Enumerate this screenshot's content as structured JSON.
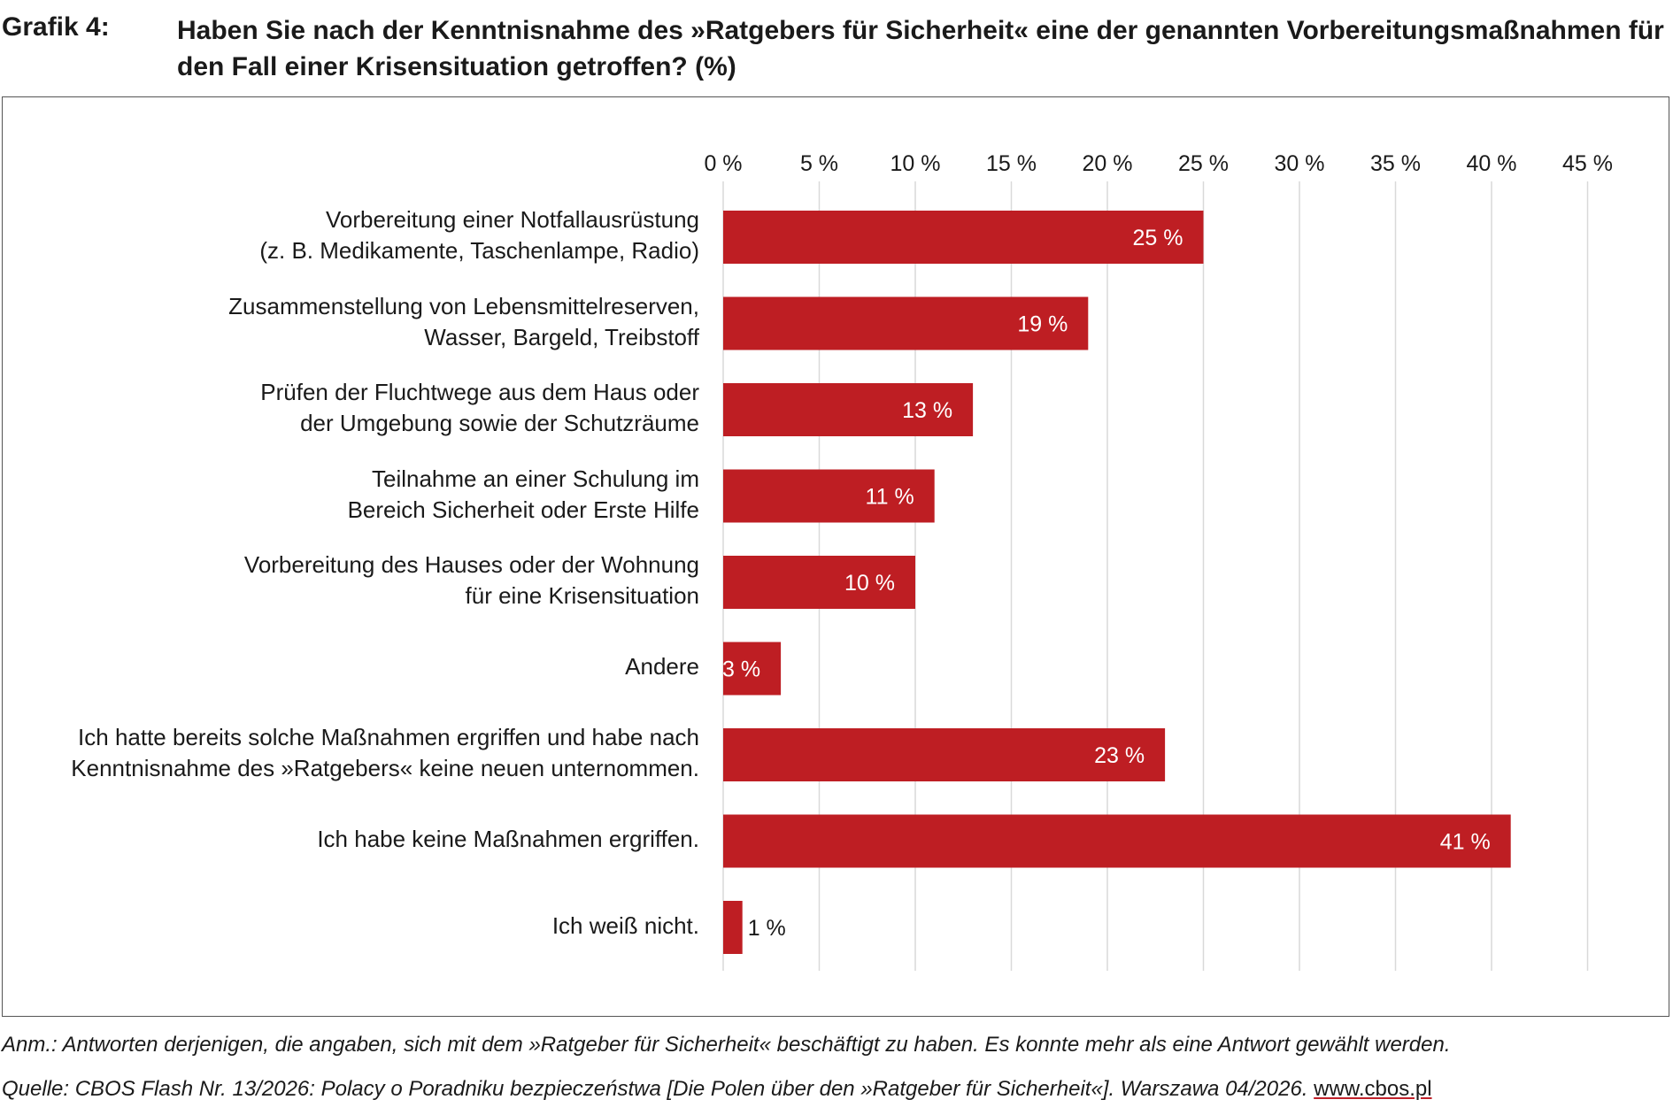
{
  "header": {
    "grafik_label": "Grafik 4:",
    "title": "Haben Sie nach der Kenntnisnahme des »Ratgebers für Sicherheit« eine der genannten Vorbereitungs­maßnahmen für den Fall einer Krisensituation getroffen? (%)"
  },
  "colors": {
    "bar": "#be1e23",
    "grid": "#d9d9d9",
    "frame": "#555555"
  },
  "chart_data": {
    "type": "bar",
    "orientation": "horizontal",
    "xlim": [
      0,
      45
    ],
    "ticks": [
      0,
      5,
      10,
      15,
      20,
      25,
      30,
      35,
      40,
      45
    ],
    "tick_labels": [
      "0 %",
      "5 %",
      "10 %",
      "15 %",
      "20 %",
      "25 %",
      "30 %",
      "35 %",
      "40 %",
      "45 %"
    ],
    "axis_position": "top",
    "categories": [
      [
        "Vorbereitung einer Notfallausrüstung",
        "(z. B. Medikamente, Taschenlampe, Radio)"
      ],
      [
        "Zusammenstellung von Lebensmittelreserven,",
        "Wasser, Bargeld, Treibstoff"
      ],
      [
        "Prüfen der Fluchtwege aus dem Haus oder",
        "der Umgebung sowie der Schutzräume"
      ],
      [
        "Teilnahme an einer Schulung im",
        "Bereich Sicherheit oder Erste Hilfe"
      ],
      [
        "Vorbereitung des Hauses oder der Wohnung",
        "für eine Krisensituation"
      ],
      [
        "Andere"
      ],
      [
        "Ich hatte bereits solche Maßnahmen ergriffen und habe nach",
        "Kenntnisnahme des »Ratgebers« keine neuen unternommen."
      ],
      [
        "Ich habe keine Maßnahmen ergriffen."
      ],
      [
        "Ich weiß nicht."
      ]
    ],
    "values": [
      25,
      19,
      13,
      11,
      10,
      3,
      23,
      41,
      1
    ],
    "value_labels": [
      "25 %",
      "19 %",
      "13 %",
      "11 %",
      "10 %",
      "3 %",
      "23 %",
      "41 %",
      "1 %"
    ],
    "grid": true,
    "legend": "none"
  },
  "notes": {
    "anm": "Anm.: Antworten derjenigen, die angaben, sich mit dem »Ratgeber für Sicherheit« beschäftigt zu haben. Es konnte mehr als eine Antwort gewählt werden.",
    "quelle": "Quelle: CBOS Flash Nr. 13/2026: Polacy o Poradniku bezpieczeństwa [Die Polen über den »Ratgeber für Sicherheit«]. Warszawa 04/2026.",
    "link": "www.cbos.pl"
  }
}
